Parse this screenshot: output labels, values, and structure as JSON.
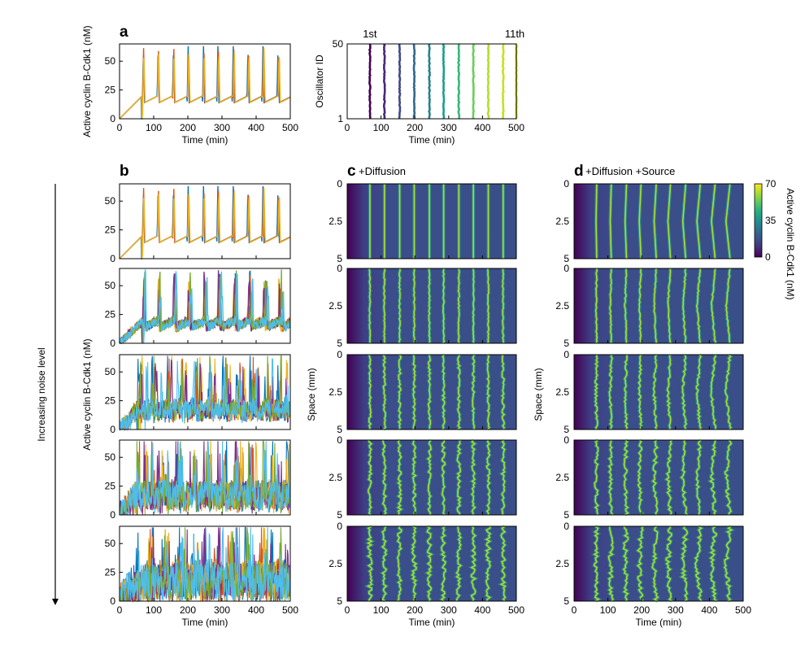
{
  "chart_data": [
    {
      "id": "a_left",
      "type": "line",
      "panel_label": "a",
      "xlabel": "Time (min)",
      "ylabel": "Active cyclin B-Cdk1 (nM)",
      "xlim": [
        0,
        500
      ],
      "ylim": [
        0,
        65
      ],
      "xticks": [
        "0",
        "100",
        "200",
        "300",
        "400",
        "500"
      ],
      "yticks": [
        "0",
        "25",
        "50"
      ],
      "description_values": {
        "rise_start": 0,
        "rise_end_time": 65,
        "rise_end_value": 20,
        "spike_times": [
          67,
          110,
          155,
          198,
          243,
          285,
          330,
          373,
          417,
          461,
          500
        ],
        "peak": 63,
        "trough": 15
      },
      "series_colors": [
        "#0072BD",
        "#D95319",
        "#EDB120",
        "#7E2F8E",
        "#77AC30",
        "#4DBEEE",
        "#A2142F"
      ]
    },
    {
      "id": "a_right",
      "type": "scatter",
      "xlabel": "Time (min)",
      "ylabel": "Oscillator ID",
      "xlim": [
        0,
        500
      ],
      "ylim": [
        1,
        50
      ],
      "xticks": [
        "0",
        "100",
        "200",
        "300",
        "400",
        "500"
      ],
      "yticks": [
        "1",
        "50"
      ],
      "annotations": [
        "1st",
        "11th"
      ],
      "wave_times": [
        67,
        110,
        155,
        198,
        243,
        285,
        330,
        373,
        417,
        461,
        500
      ],
      "wave_colors": [
        "#440154",
        "#482878",
        "#3E4A89",
        "#31688E",
        "#26828E",
        "#1F9E89",
        "#35B779",
        "#6CCE59",
        "#B4DE2C",
        "#C8E020",
        "#D8E219"
      ]
    },
    {
      "id": "b",
      "type": "line",
      "panel_label": "b",
      "xlabel": "Time (min)",
      "ylabel": "Active cyclin B-Cdk1 (nM)",
      "side_label": "Increasing noise level",
      "xlim": [
        0,
        500
      ],
      "ylim": [
        0,
        65
      ],
      "xticks": [
        "0",
        "100",
        "200",
        "300",
        "400",
        "500"
      ],
      "yticks": [
        "0",
        "25",
        "50"
      ],
      "noise_levels": [
        0,
        1,
        2,
        3,
        4
      ],
      "spike_times": [
        67,
        110,
        155,
        198,
        243,
        285,
        330,
        373,
        417,
        461,
        500
      ]
    },
    {
      "id": "c",
      "type": "heatmap",
      "panel_label": "c",
      "subtitle": "+Diffusion",
      "xlabel": "Time (min)",
      "ylabel": "Space (mm)",
      "xlim": [
        0,
        500
      ],
      "ylim": [
        0,
        5
      ],
      "xticks": [
        "0",
        "100",
        "200",
        "300",
        "400",
        "500"
      ],
      "yticks": [
        "0",
        "2.5",
        "5"
      ],
      "noise_levels": [
        0,
        1,
        2,
        3,
        4
      ],
      "wave_times": [
        67,
        110,
        155,
        198,
        243,
        285,
        330,
        373,
        417,
        461,
        500
      ],
      "chevron_amplitude": 0
    },
    {
      "id": "d",
      "type": "heatmap",
      "panel_label": "d",
      "subtitle": "+Diffusion +Source",
      "xlabel": "Time (min)",
      "ylabel": "Space (mm)",
      "xlim": [
        0,
        500
      ],
      "ylim": [
        0,
        5
      ],
      "xticks": [
        "0",
        "100",
        "200",
        "300",
        "400",
        "500"
      ],
      "yticks": [
        "0",
        "2.5",
        "5"
      ],
      "noise_levels": [
        0,
        1,
        2,
        3,
        4
      ],
      "wave_times": [
        67,
        110,
        155,
        198,
        243,
        285,
        330,
        373,
        417,
        461,
        500
      ],
      "chevron_amplitude": 1
    }
  ],
  "colorbar": {
    "label": "Active cyclin B-Cdk1 (nM)",
    "ticks": [
      "0",
      "35",
      "70"
    ],
    "range": [
      0,
      70
    ],
    "colormap": "viridis"
  },
  "colors": {
    "viridis": [
      "#440154",
      "#472C7A",
      "#3B518B",
      "#2C718E",
      "#21908D",
      "#27AD81",
      "#5CC863",
      "#AADC32",
      "#FDE725"
    ],
    "background_heat": "#3F4A8A",
    "lines": [
      "#0072BD",
      "#D95319",
      "#EDB120",
      "#7E2F8E",
      "#77AC30",
      "#4DBEEE",
      "#A2142F"
    ]
  }
}
